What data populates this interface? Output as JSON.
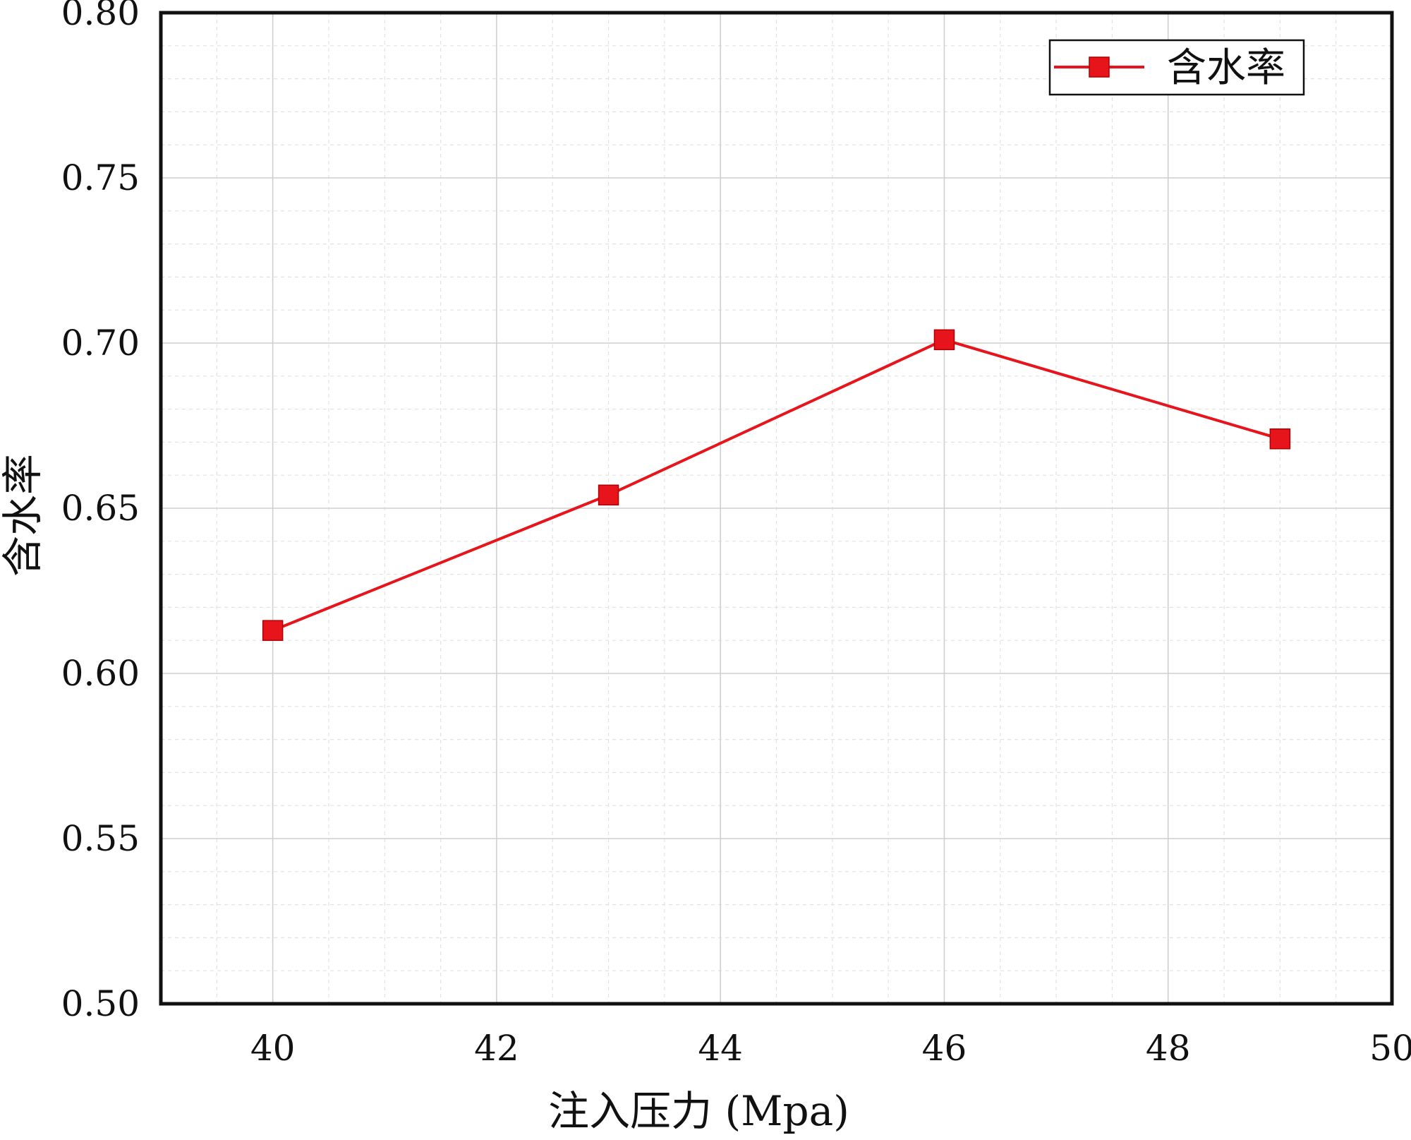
{
  "chart_data": {
    "type": "line",
    "x": [
      40,
      43,
      46,
      49
    ],
    "series": [
      {
        "name": "含水率",
        "values": [
          0.613,
          0.654,
          0.701,
          0.671
        ],
        "color": "#e8141b",
        "marker": "square"
      }
    ],
    "xlabel": "注入压力 (Mpa)",
    "ylabel": "含水率",
    "xlim": [
      39,
      50
    ],
    "ylim": [
      0.5,
      0.8
    ],
    "xticks": [
      40,
      42,
      44,
      46,
      48,
      50
    ],
    "xtick_labels": [
      "40",
      "42",
      "44",
      "46",
      "48",
      "50"
    ],
    "yticks": [
      0.5,
      0.55,
      0.6,
      0.65,
      0.7,
      0.75,
      0.8
    ],
    "ytick_labels": [
      "0.50",
      "0.55",
      "0.60",
      "0.65",
      "0.70",
      "0.75",
      "0.80"
    ],
    "grid": true,
    "minor_grid": true,
    "legend_position": "top-right"
  }
}
